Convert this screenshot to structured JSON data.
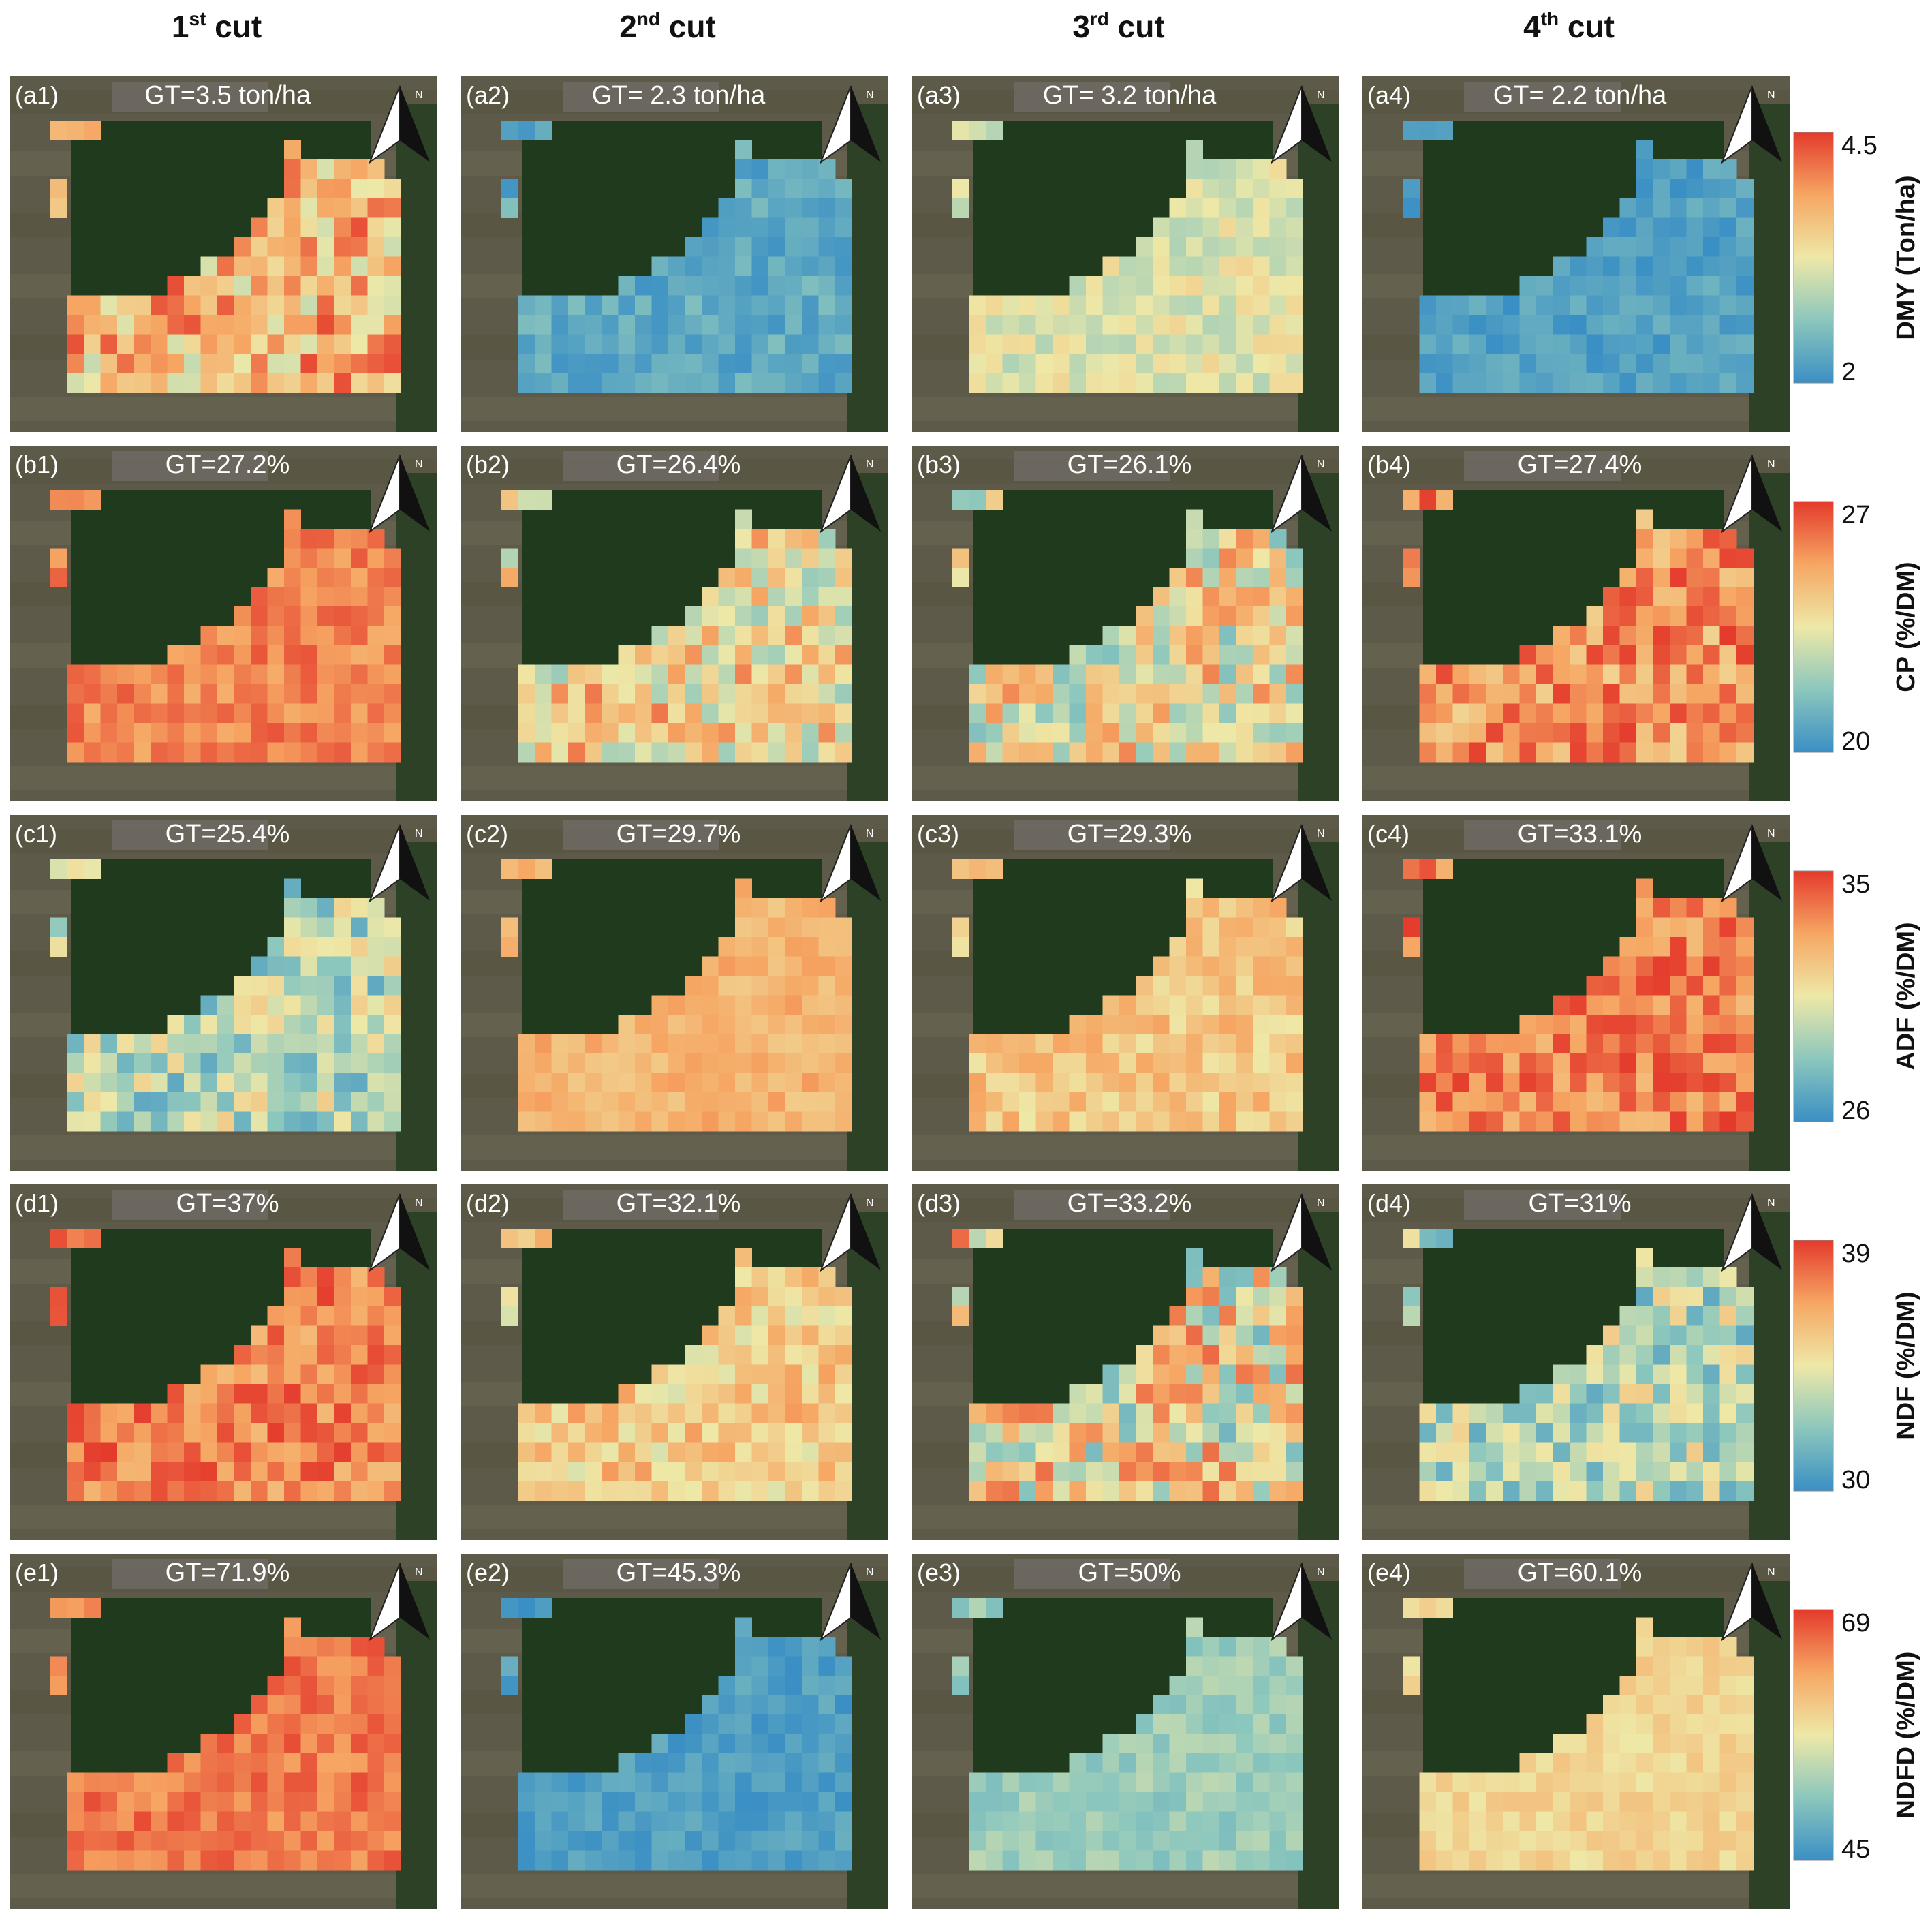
{
  "colors": {
    "scale": [
      "#3a8fc4",
      "#8cc7bd",
      "#eee8a7",
      "#f6a663",
      "#e43a2c"
    ],
    "text": "#111111",
    "forest": "#1f3a1d",
    "crop": "#5d5a49",
    "label_box": "#6f6a63"
  },
  "icons": {
    "north": "north-arrow-icon"
  },
  "north_label": "N",
  "chart_data": {
    "type": "heatmap",
    "description_free": true,
    "columns": [
      {
        "main": "1",
        "sup": "st",
        "rest": " cut"
      },
      {
        "main": "2",
        "sup": "nd",
        "rest": " cut"
      },
      {
        "main": "3",
        "sup": "rd",
        "rest": " cut"
      },
      {
        "main": "4",
        "sup": "th",
        "rest": " cut"
      }
    ],
    "rows": [
      {
        "variable": "DMY (Ton/ha)",
        "colorbar": {
          "min": 2,
          "max": 4.5,
          "min_label": "2",
          "max_label": "4.5"
        },
        "panels": [
          {
            "label": "(a1)",
            "gt": "GT=3.5 ton/ha",
            "gt_value": 3.5,
            "min": 3.0,
            "max": 4.4,
            "seed": 11
          },
          {
            "label": "(a2)",
            "gt": "GT= 2.3 ton/ha",
            "gt_value": 2.3,
            "min": 2.05,
            "max": 2.55,
            "seed": 12
          },
          {
            "label": "(a3)",
            "gt": "GT= 3.2 ton/ha",
            "gt_value": 3.2,
            "min": 2.85,
            "max": 3.45,
            "seed": 13
          },
          {
            "label": "(a4)",
            "gt": "GT= 2.2 ton/ha",
            "gt_value": 2.2,
            "min": 2.0,
            "max": 2.4,
            "seed": 14
          }
        ]
      },
      {
        "variable": "CP (%/DM)",
        "colorbar": {
          "min": 20,
          "max": 27,
          "min_label": "20",
          "max_label": "27"
        },
        "panels": [
          {
            "label": "(b1)",
            "gt": "GT=27.2%",
            "gt_value": 27.2,
            "min": 25.0,
            "max": 26.6,
            "seed": 21
          },
          {
            "label": "(b2)",
            "gt": "GT=26.4%",
            "gt_value": 26.4,
            "min": 22.0,
            "max": 26.0,
            "seed": 22
          },
          {
            "label": "(b3)",
            "gt": "GT=26.1%",
            "gt_value": 26.1,
            "min": 21.5,
            "max": 25.8,
            "seed": 23
          },
          {
            "label": "(b4)",
            "gt": "GT=27.4%",
            "gt_value": 27.4,
            "min": 24.0,
            "max": 27.0,
            "seed": 24
          }
        ]
      },
      {
        "variable": "ADF (%/DM)",
        "colorbar": {
          "min": 26,
          "max": 35,
          "min_label": "26",
          "max_label": "35"
        },
        "panels": [
          {
            "label": "(c1)",
            "gt": "GT=25.4%",
            "gt_value": 25.4,
            "min": 27.0,
            "max": 31.5,
            "seed": 31
          },
          {
            "label": "(c2)",
            "gt": "GT=29.7%",
            "gt_value": 29.7,
            "min": 31.5,
            "max": 33.0,
            "seed": 32
          },
          {
            "label": "(c3)",
            "gt": "GT=29.3%",
            "gt_value": 29.3,
            "min": 30.5,
            "max": 32.8,
            "seed": 33
          },
          {
            "label": "(c4)",
            "gt": "GT=33.1%",
            "gt_value": 33.1,
            "min": 32.0,
            "max": 35.0,
            "seed": 34
          }
        ]
      },
      {
        "variable": "NDF (%/DM)",
        "colorbar": {
          "min": 30,
          "max": 39,
          "min_label": "30",
          "max_label": "39"
        },
        "panels": [
          {
            "label": "(d1)",
            "gt": "GT=37%",
            "gt_value": 37,
            "min": 36.0,
            "max": 39.0,
            "seed": 41
          },
          {
            "label": "(d2)",
            "gt": "GT=32.1%",
            "gt_value": 32.1,
            "min": 34.0,
            "max": 37.0,
            "seed": 42
          },
          {
            "label": "(d3)",
            "gt": "GT=33.2%",
            "gt_value": 33.2,
            "min": 31.5,
            "max": 38.0,
            "seed": 43
          },
          {
            "label": "(d4)",
            "gt": "GT=31%",
            "gt_value": 31,
            "min": 31.0,
            "max": 35.5,
            "seed": 44
          }
        ]
      },
      {
        "variable": "NDFD (%/DM)",
        "colorbar": {
          "min": 45,
          "max": 69,
          "min_label": "45",
          "max_label": "69"
        },
        "panels": [
          {
            "label": "(e1)",
            "gt": "GT=71.9%",
            "gt_value": 71.9,
            "min": 63.0,
            "max": 68.0,
            "seed": 51
          },
          {
            "label": "(e2)",
            "gt": "GT=45.3%",
            "gt_value": 45.3,
            "min": 45.0,
            "max": 48.5,
            "seed": 52
          },
          {
            "label": "(e3)",
            "gt": "GT=50%",
            "gt_value": 50,
            "min": 50.0,
            "max": 54.0,
            "seed": 53
          },
          {
            "label": "(e4)",
            "gt": "GT=60.1%",
            "gt_value": 60.1,
            "min": 57.0,
            "max": 60.5,
            "seed": 54
          }
        ]
      }
    ]
  }
}
